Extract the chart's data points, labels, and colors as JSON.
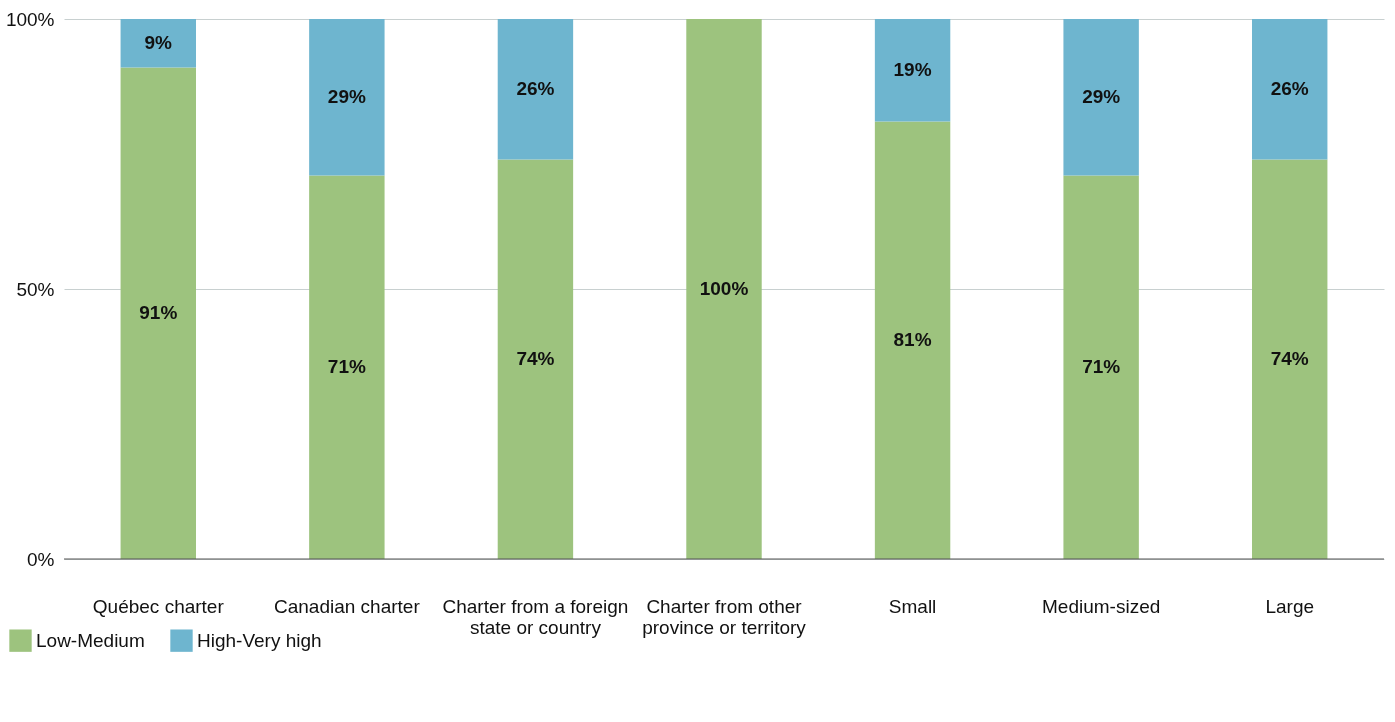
{
  "chart_data": {
    "type": "bar",
    "stacked": true,
    "categories": [
      "Québec charter",
      "Canadian charter",
      "Charter from a foreign\nstate or country",
      "Charter from other\nprovince or territory",
      "Small",
      "Medium-sized",
      "Large"
    ],
    "series": [
      {
        "name": "Low-Medium",
        "color": "#9dc37e",
        "values": [
          91,
          71,
          74,
          100,
          81,
          71,
          74
        ],
        "value_labels": [
          "91%",
          "71%",
          "74%",
          "100%",
          "81%",
          "71%",
          "74%"
        ]
      },
      {
        "name": "High-Very high",
        "color": "#6eb5cf",
        "values": [
          9,
          29,
          26,
          0,
          19,
          29,
          26
        ],
        "value_labels": [
          "9%",
          "29%",
          "26%",
          null,
          "19%",
          "29%",
          "26%"
        ]
      }
    ],
    "ylim": [
      0,
      100
    ],
    "yticks": [
      {
        "value": 0,
        "label": "0%"
      },
      {
        "value": 50,
        "label": "50%"
      },
      {
        "value": 100,
        "label": "100%"
      }
    ],
    "grid": "y",
    "legend": "bottom left"
  }
}
